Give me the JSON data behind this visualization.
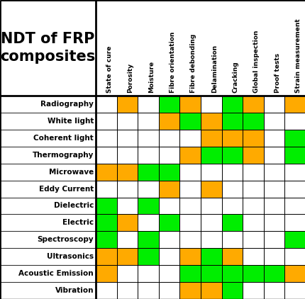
{
  "title_line1": "NDT of FRP",
  "title_line2": "composites",
  "col_headers": [
    "State of cure",
    "Porosity",
    "Moisture",
    "Fibre orientation",
    "Fibre debonding",
    "Delamination",
    "Cracking",
    "Global inspection",
    "Proof tests",
    "Strain measurement"
  ],
  "row_headers": [
    "Radiography",
    "White light",
    "Coherent light",
    "Thermography",
    "Microwave",
    "Eddy Current",
    "Dielectric",
    "Electric",
    "Spectroscopy",
    "Ultrasonics",
    "Acoustic Emission",
    "Vibration"
  ],
  "green": "#00ee00",
  "orange": "#ffaa00",
  "white": "#ffffff",
  "bg": "#ffffff",
  "border": "#000000",
  "grid_data": [
    [
      "W",
      "O",
      "W",
      "G",
      "O",
      "W",
      "G",
      "O",
      "W",
      "O"
    ],
    [
      "W",
      "W",
      "W",
      "O",
      "G",
      "O",
      "G",
      "G",
      "W",
      "W"
    ],
    [
      "W",
      "W",
      "W",
      "W",
      "W",
      "O",
      "O",
      "O",
      "W",
      "G"
    ],
    [
      "W",
      "W",
      "W",
      "W",
      "O",
      "G",
      "G",
      "O",
      "W",
      "G"
    ],
    [
      "O",
      "O",
      "G",
      "G",
      "W",
      "W",
      "W",
      "W",
      "W",
      "W"
    ],
    [
      "W",
      "W",
      "W",
      "O",
      "W",
      "O",
      "W",
      "W",
      "W",
      "W"
    ],
    [
      "G",
      "W",
      "G",
      "W",
      "W",
      "W",
      "W",
      "W",
      "W",
      "W"
    ],
    [
      "G",
      "O",
      "W",
      "G",
      "W",
      "W",
      "G",
      "W",
      "W",
      "W"
    ],
    [
      "G",
      "W",
      "G",
      "W",
      "W",
      "W",
      "W",
      "W",
      "W",
      "G"
    ],
    [
      "O",
      "O",
      "G",
      "W",
      "O",
      "G",
      "O",
      "W",
      "W",
      "W"
    ],
    [
      "O",
      "W",
      "W",
      "W",
      "G",
      "G",
      "G",
      "G",
      "G",
      "O"
    ],
    [
      "W",
      "W",
      "W",
      "W",
      "O",
      "O",
      "G",
      "W",
      "W",
      "W"
    ]
  ]
}
